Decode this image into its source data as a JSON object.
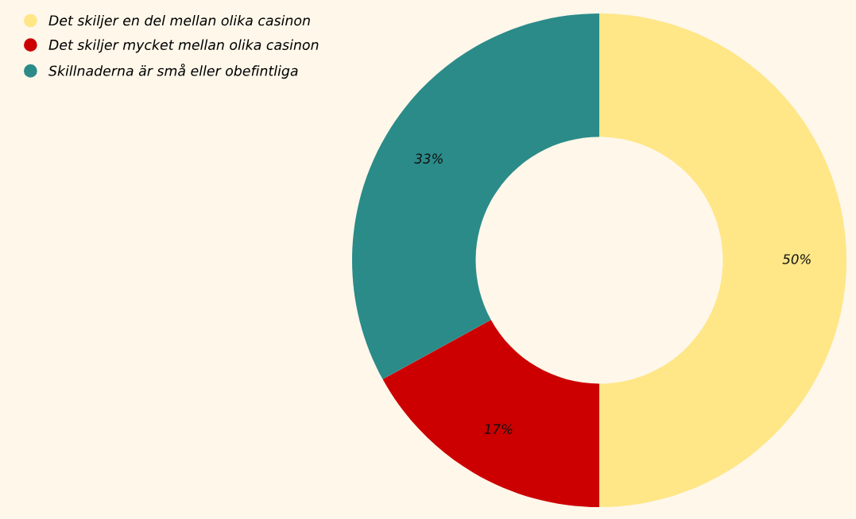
{
  "chart_data": {
    "type": "donut",
    "categories": [
      "Det skiljer en del mellan olika casinon",
      "Det skiljer mycket mellan olika casinon",
      "Skillnaderna är små eller obefintliga"
    ],
    "values": [
      50,
      17,
      33
    ],
    "colors": [
      "#ffe687",
      "#cc0000",
      "#2b8b89"
    ],
    "value_labels": [
      "50%",
      "17%",
      "33%"
    ],
    "legend": "top left"
  }
}
